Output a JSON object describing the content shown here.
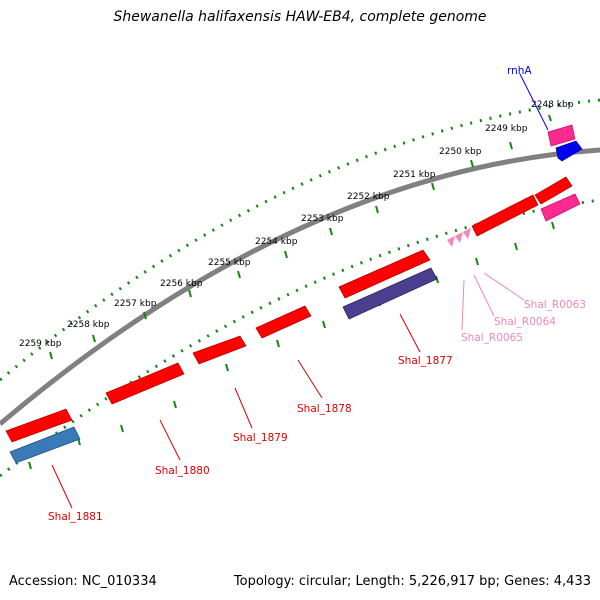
{
  "title": "Shewanella halifaxensis HAW-EB4, complete genome",
  "footer": {
    "accession": "Accession: NC_010334",
    "summary": "Topology: circular; Length: 5,226,917 bp; Genes: 4,433"
  },
  "scale_labels": [
    "2248 kbp",
    "2249 kbp",
    "2250 kbp",
    "2251 kbp",
    "2252 kbp",
    "2253 kbp",
    "2254 kbp",
    "2255 kbp",
    "2256 kbp",
    "2257 kbp",
    "2258 kbp",
    "2259 kbp"
  ],
  "features": [
    {
      "name": "rnhA",
      "strand": "forward",
      "type": "gene",
      "color": "#0000ee"
    },
    {
      "name": "Shal_1877",
      "strand": "forward",
      "type": "gene",
      "color": "#ff0000"
    },
    {
      "name": "Shal_1878",
      "strand": "forward",
      "type": "gene",
      "color": "#ff0000"
    },
    {
      "name": "Shal_1879",
      "strand": "forward",
      "type": "gene",
      "color": "#ff0000"
    },
    {
      "name": "Shal_1880",
      "strand": "forward",
      "type": "gene",
      "color": "#ff0000"
    },
    {
      "name": "Shal_1881",
      "strand": "forward",
      "type": "gene",
      "color": "#ff0000"
    },
    {
      "name": "Shal_R0063",
      "strand": "forward",
      "type": "RNA",
      "color": "#ee88bb"
    },
    {
      "name": "Shal_R0064",
      "strand": "forward",
      "type": "RNA",
      "color": "#ee88bb"
    },
    {
      "name": "Shal_R0065",
      "strand": "forward",
      "type": "RNA",
      "color": "#ee88bb"
    }
  ],
  "colors": {
    "backbone": "#808080",
    "scale_ticks": "#118811",
    "gene_red": "#ff0000",
    "gene_red_label": "#dd0000",
    "gene_pink": "#ff3399",
    "gene_blue": "#0000ee",
    "gene_steelblue": "#3a7ab8",
    "gene_purple": "#4a3f8f",
    "rna_pink": "#ee88bb"
  }
}
